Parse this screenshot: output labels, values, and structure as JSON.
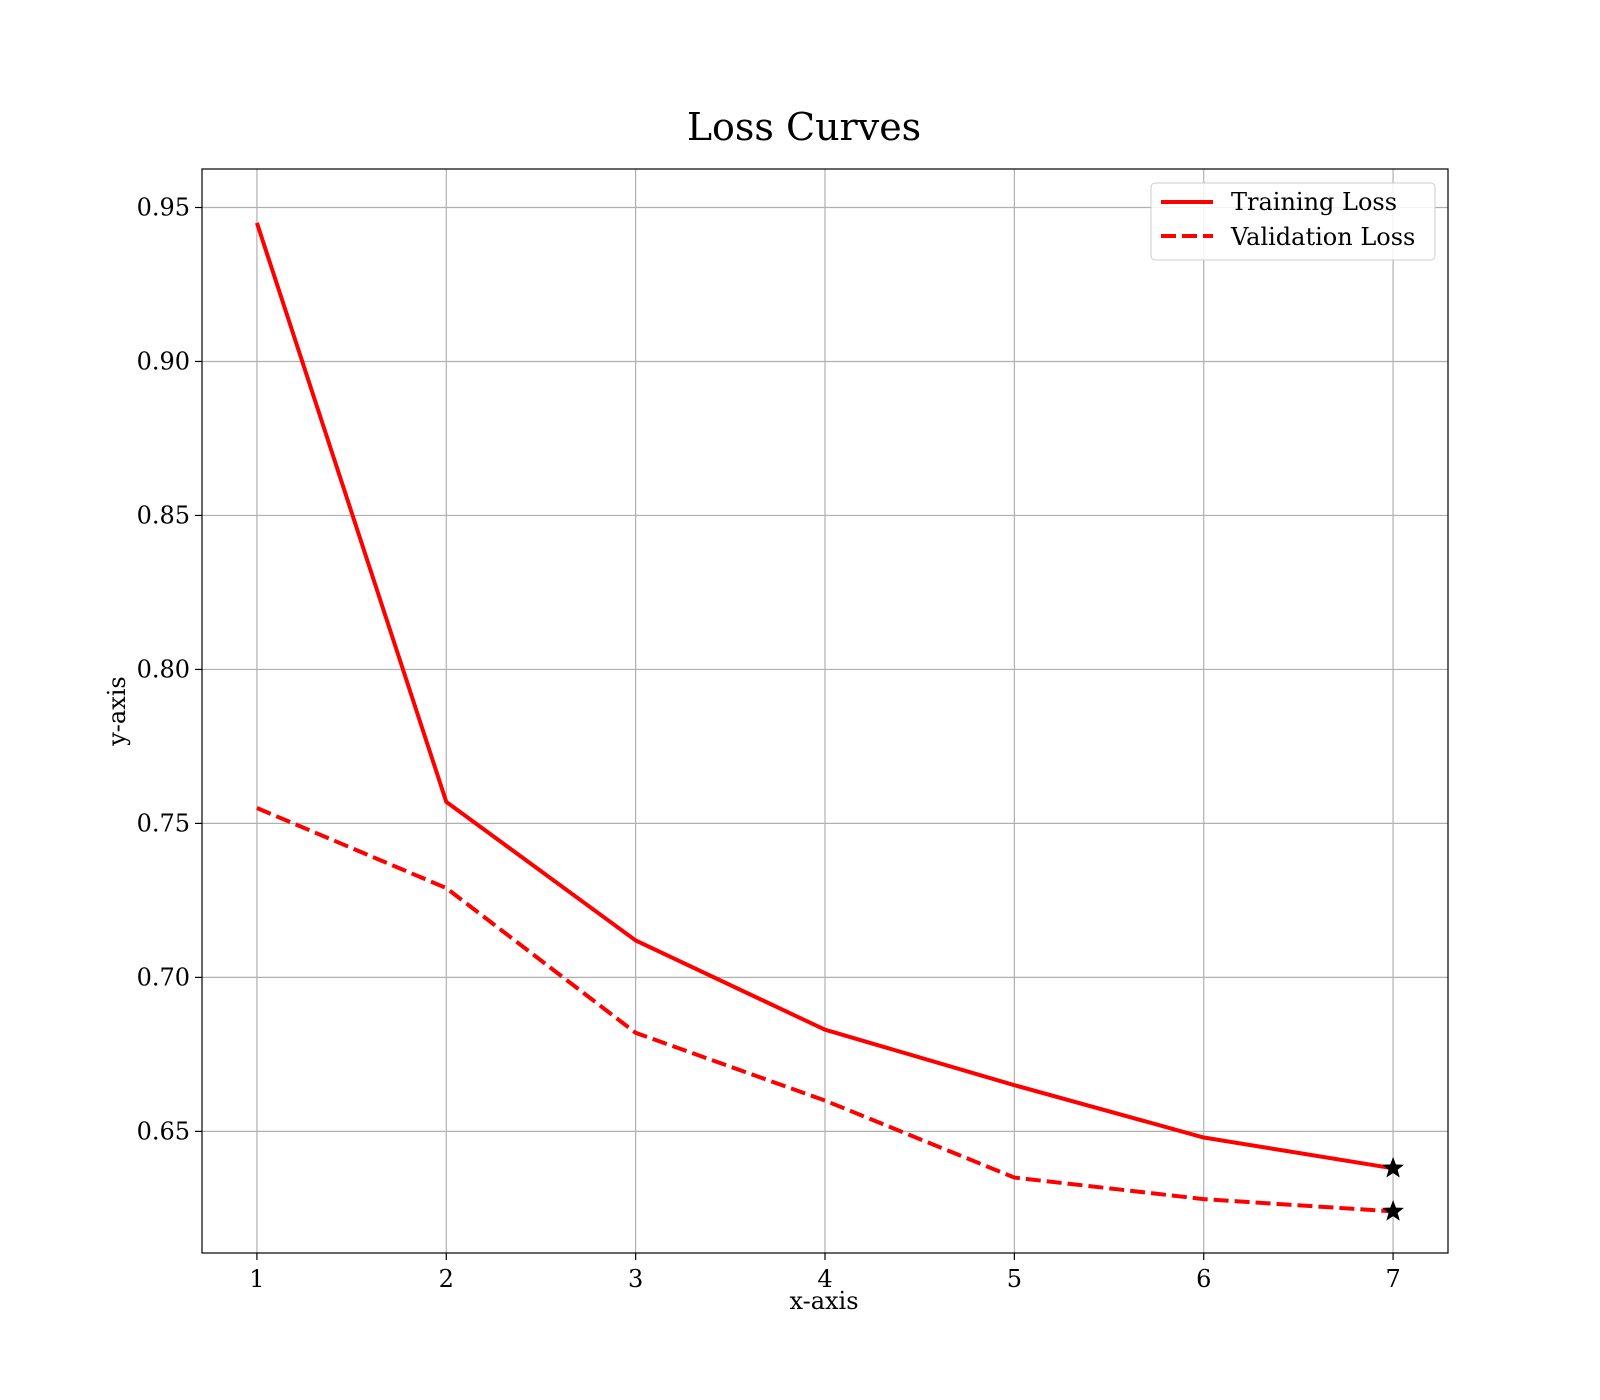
{
  "chart_data": {
    "type": "line",
    "title": "Loss Curves",
    "xlabel": "x-axis",
    "ylabel": "y-axis",
    "x": [
      1,
      2,
      3,
      4,
      5,
      6,
      7
    ],
    "xlim": [
      0.71,
      7.29
    ],
    "ylim": [
      0.6105,
      0.9625
    ],
    "xticks": [
      1,
      2,
      3,
      4,
      5,
      6,
      7
    ],
    "yticks": [
      0.65,
      0.7,
      0.75,
      0.8,
      0.85,
      0.9,
      0.95
    ],
    "yticks_labels": [
      "0.65",
      "0.70",
      "0.75",
      "0.80",
      "0.85",
      "0.90",
      "0.95"
    ],
    "grid": true,
    "legend_position": "top-right",
    "series": [
      {
        "name": "Training Loss",
        "values": [
          0.945,
          0.757,
          0.712,
          0.683,
          0.665,
          0.648,
          0.638
        ],
        "color": "#ff0000",
        "linestyle": "solid",
        "end_marker": "star"
      },
      {
        "name": "Validation Loss",
        "values": [
          0.755,
          0.729,
          0.682,
          0.66,
          0.635,
          0.628,
          0.624
        ],
        "color": "#ff0000",
        "linestyle": "dashed",
        "end_marker": "star"
      }
    ],
    "marker_color": "#000000"
  }
}
